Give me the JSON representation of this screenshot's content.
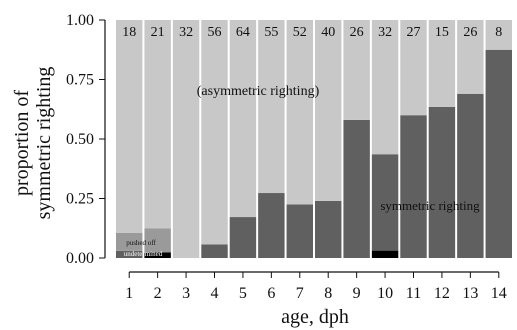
{
  "chart_data": {
    "type": "bar",
    "stacked": true,
    "xlabel": "age, dph",
    "ylabel": [
      "proportion of",
      "symmetric righting"
    ],
    "ylim": [
      0,
      1
    ],
    "yticks": [
      0,
      0.25,
      0.5,
      0.75,
      1
    ],
    "ytick_labels": [
      "0.00",
      "0.25",
      "0.50",
      "0.75",
      "1.00"
    ],
    "categories": [
      "1",
      "2",
      "3",
      "4",
      "5",
      "6",
      "7",
      "8",
      "9",
      "10",
      "11",
      "12",
      "13",
      "14"
    ],
    "n_labels": [
      "18",
      "21",
      "32",
      "56",
      "64",
      "55",
      "52",
      "40",
      "26",
      "32",
      "27",
      "15",
      "26",
      "8"
    ],
    "series": [
      {
        "name": "undetermined",
        "color": "#000000",
        "values": [
          0.0,
          0.024,
          0,
          0,
          0,
          0,
          0,
          0,
          0,
          0.031,
          0,
          0,
          0,
          0
        ]
      },
      {
        "name": "symmetric righting",
        "color": "#606060",
        "values": [
          0.03,
          0.0,
          0.0,
          0.057,
          0.172,
          0.273,
          0.225,
          0.24,
          0.58,
          0.405,
          0.6,
          0.635,
          0.69,
          0.875
        ]
      },
      {
        "name": "pushed off",
        "color": "#9a9a9a",
        "values": [
          0.075,
          0.1,
          0,
          0,
          0,
          0,
          0,
          0,
          0,
          0,
          0,
          0,
          0,
          0
        ]
      },
      {
        "name": "(asymmetric righting)",
        "color": "#c8c8c8",
        "values": [
          0.895,
          0.876,
          1.0,
          0.943,
          0.828,
          0.727,
          0.775,
          0.76,
          0.42,
          0.564,
          0.4,
          0.365,
          0.31,
          0.125
        ]
      }
    ],
    "annotations": {
      "asymmetric": "(asymmetric righting)",
      "symmetric": "symmetric righting",
      "pushed_off": "pushed off",
      "undetermined": "undetermined"
    }
  }
}
